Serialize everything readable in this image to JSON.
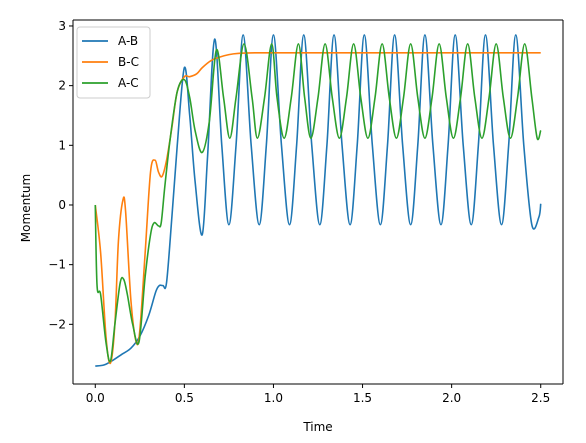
{
  "chart_data": {
    "type": "line",
    "xlabel": "Time",
    "ylabel": "Momentum",
    "xlim": [
      -0.125,
      2.625
    ],
    "ylim": [
      -3.0,
      3.1
    ],
    "xticks": [
      0.0,
      0.5,
      1.0,
      1.5,
      2.0,
      2.5
    ],
    "xtick_labels": [
      "0.0",
      "0.5",
      "1.0",
      "1.5",
      "2.0",
      "2.5"
    ],
    "yticks": [
      -2,
      -1,
      0,
      1,
      2,
      3
    ],
    "ytick_labels": [
      "−2",
      "−1",
      "0",
      "1",
      "2",
      "3"
    ],
    "grid": false,
    "legend_position": "top-left",
    "series": [
      {
        "name": "A-B",
        "color": "#1f77b4",
        "x": [
          0.0,
          0.05,
          0.1,
          0.15,
          0.2,
          0.25,
          0.3,
          0.34,
          0.36,
          0.38,
          0.4,
          0.43,
          0.46,
          0.5,
          0.53,
          0.56,
          0.6,
          0.63,
          0.67,
          0.71,
          0.75,
          0.79,
          0.83,
          0.875,
          0.92,
          0.96,
          1.0,
          1.045,
          1.09,
          1.13,
          1.17,
          1.215,
          1.26,
          1.3,
          1.34,
          1.385,
          1.43,
          1.47,
          1.51,
          1.555,
          1.6,
          1.64,
          1.68,
          1.725,
          1.77,
          1.81,
          1.85,
          1.895,
          1.94,
          1.98,
          2.02,
          2.065,
          2.11,
          2.15,
          2.19,
          2.235,
          2.28,
          2.32,
          2.36,
          2.405,
          2.45,
          2.49,
          2.5
        ],
        "y": [
          -2.7,
          -2.68,
          -2.6,
          -2.5,
          -2.4,
          -2.2,
          -1.85,
          -1.45,
          -1.35,
          -1.35,
          -1.3,
          -0.2,
          1.0,
          2.3,
          1.5,
          0.4,
          -0.5,
          0.8,
          2.78,
          1.0,
          -0.33,
          1.0,
          2.85,
          1.0,
          -0.33,
          1.0,
          2.85,
          1.0,
          -0.33,
          1.0,
          2.85,
          1.0,
          -0.33,
          1.0,
          2.85,
          1.0,
          -0.33,
          1.0,
          2.85,
          1.0,
          -0.33,
          1.0,
          2.85,
          1.0,
          -0.33,
          1.0,
          2.85,
          1.0,
          -0.33,
          1.0,
          2.85,
          1.0,
          -0.33,
          1.0,
          2.85,
          1.0,
          -0.33,
          1.0,
          2.85,
          1.0,
          -0.33,
          -0.2,
          0.02
        ]
      },
      {
        "name": "B-C",
        "color": "#ff7f0e",
        "x": [
          0.0,
          0.03,
          0.06,
          0.085,
          0.11,
          0.13,
          0.155,
          0.17,
          0.2,
          0.23,
          0.25,
          0.28,
          0.31,
          0.335,
          0.355,
          0.375,
          0.4,
          0.43,
          0.46,
          0.5,
          0.53,
          0.57,
          0.6,
          0.65,
          0.7,
          0.75,
          0.8,
          0.9,
          1.0,
          1.5,
          2.0,
          2.5
        ],
        "y": [
          0.0,
          -0.8,
          -2.2,
          -2.65,
          -2.0,
          -0.6,
          0.08,
          -0.1,
          -1.6,
          -2.3,
          -2.1,
          -0.8,
          0.55,
          0.75,
          0.55,
          0.48,
          0.75,
          1.3,
          1.9,
          2.15,
          2.15,
          2.2,
          2.3,
          2.42,
          2.48,
          2.52,
          2.54,
          2.55,
          2.55,
          2.55,
          2.55,
          2.55
        ]
      },
      {
        "name": "A-C",
        "color": "#2ca02c",
        "x": [
          0.0,
          0.01,
          0.03,
          0.06,
          0.085,
          0.11,
          0.14,
          0.16,
          0.18,
          0.21,
          0.245,
          0.28,
          0.31,
          0.33,
          0.355,
          0.37,
          0.39,
          0.42,
          0.46,
          0.5,
          0.53,
          0.56,
          0.6,
          0.64,
          0.68,
          0.72,
          0.755,
          0.79,
          0.835,
          0.88,
          0.91,
          0.95,
          0.99,
          1.02,
          1.06,
          1.1,
          1.14,
          1.175,
          1.21,
          1.25,
          1.29,
          1.33,
          1.37,
          1.41,
          1.45,
          1.49,
          1.53,
          1.57,
          1.61,
          1.65,
          1.69,
          1.73,
          1.77,
          1.81,
          1.85,
          1.89,
          1.93,
          1.97,
          2.01,
          2.05,
          2.09,
          2.13,
          2.17,
          2.21,
          2.25,
          2.29,
          2.33,
          2.37,
          2.41,
          2.45,
          2.48,
          2.5
        ],
        "y": [
          0.0,
          -1.35,
          -1.5,
          -2.3,
          -2.62,
          -2.0,
          -1.3,
          -1.25,
          -1.5,
          -2.0,
          -2.3,
          -1.2,
          -0.5,
          -0.3,
          -0.35,
          -0.3,
          0.3,
          1.1,
          1.9,
          2.1,
          1.8,
          1.25,
          0.88,
          1.4,
          2.6,
          1.8,
          1.12,
          1.8,
          2.7,
          1.8,
          1.12,
          1.8,
          2.7,
          1.8,
          1.12,
          1.8,
          2.7,
          1.8,
          1.12,
          1.8,
          2.7,
          1.8,
          1.12,
          1.8,
          2.7,
          1.8,
          1.12,
          1.8,
          2.7,
          1.8,
          1.12,
          1.8,
          2.7,
          1.8,
          1.12,
          1.8,
          2.7,
          1.8,
          1.12,
          1.8,
          2.7,
          1.8,
          1.12,
          1.8,
          2.7,
          1.8,
          1.12,
          1.8,
          2.7,
          1.8,
          1.12,
          1.25
        ]
      }
    ]
  }
}
